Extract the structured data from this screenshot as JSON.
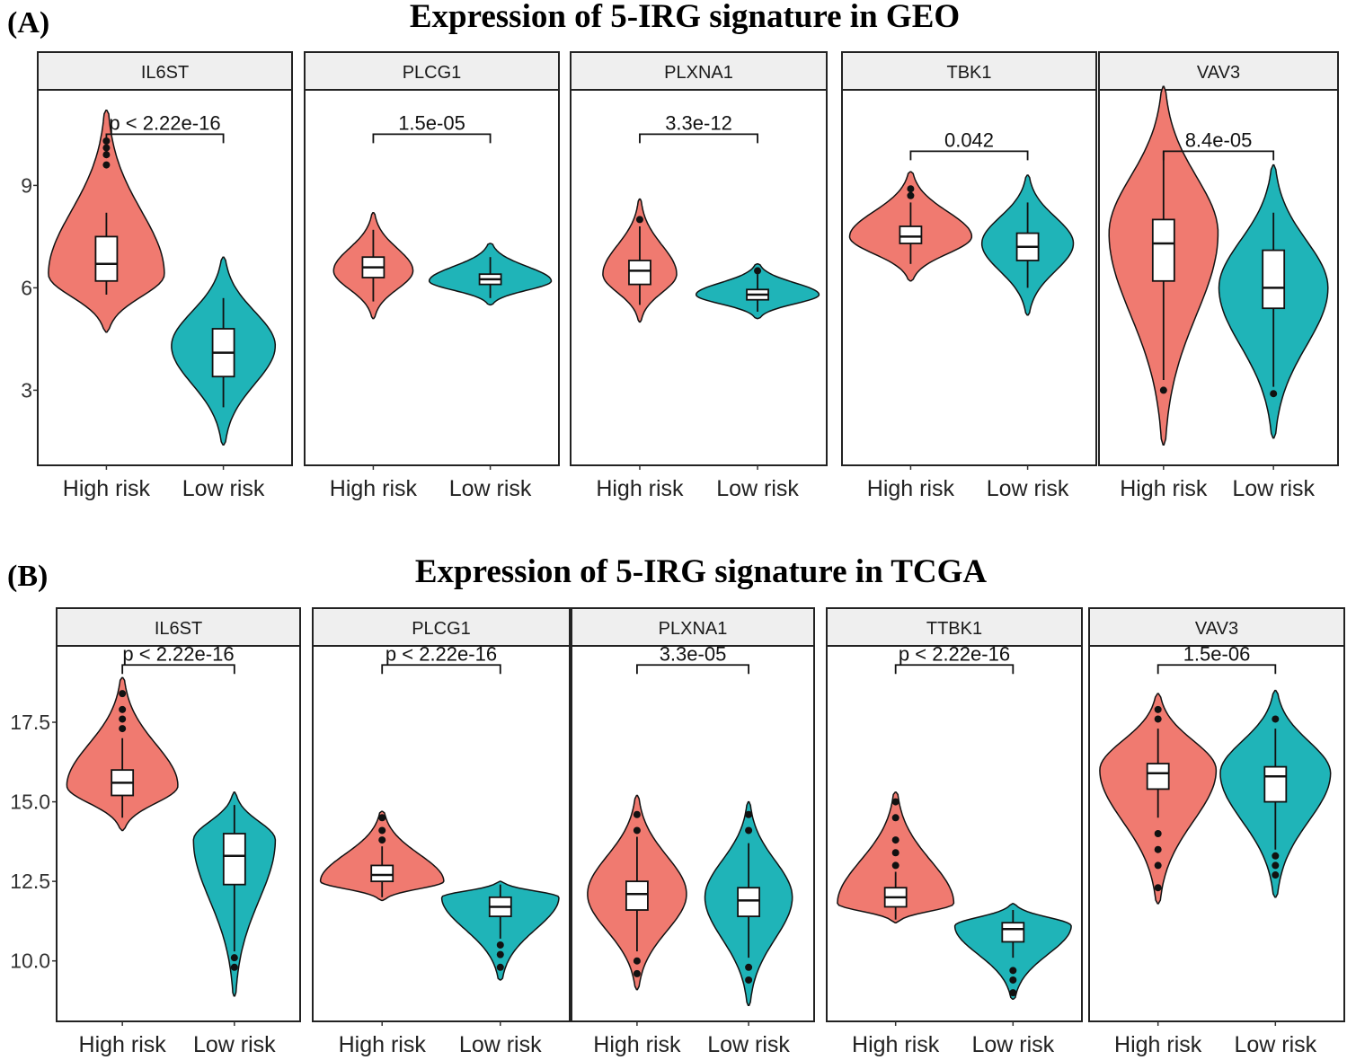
{
  "colors": {
    "high": "#F07A70",
    "low": "#1FB4B8",
    "strip": "#EFEFEF"
  },
  "chart_data": [
    {
      "type": "violin",
      "panel_label": "(A)",
      "title": "Expression of 5-IRG signature in GEO",
      "groups": [
        "High risk",
        "Low risk"
      ],
      "ylim": [
        0.8,
        11.8
      ],
      "yticks": [
        {
          "v": 3,
          "label": "3"
        },
        {
          "v": 6,
          "label": "6"
        },
        {
          "v": 9,
          "label": "9"
        }
      ],
      "facets": [
        {
          "gene": "IL6ST",
          "p": "p < 2.22e-16",
          "bracket": 10.5,
          "high": {
            "median": 6.7,
            "q1": 6.2,
            "q3": 7.5,
            "wlo": 5.8,
            "whi": 8.2,
            "min": 4.7,
            "max": 11.2,
            "mode": 6.4,
            "density": 0.95,
            "outliers": [
              9.6,
              9.9,
              10.1,
              10.3
            ]
          },
          "low": {
            "median": 4.1,
            "q1": 3.4,
            "q3": 4.8,
            "wlo": 2.5,
            "whi": 5.7,
            "min": 1.4,
            "max": 6.9,
            "mode": 4.3,
            "density": 0.85,
            "outliers": []
          }
        },
        {
          "gene": "PLCG1",
          "p": "1.5e-05",
          "bracket": 10.5,
          "high": {
            "median": 6.6,
            "q1": 6.3,
            "q3": 6.9,
            "wlo": 5.6,
            "whi": 7.7,
            "min": 5.1,
            "max": 8.2,
            "mode": 6.5,
            "density": 0.65,
            "outliers": []
          },
          "low": {
            "median": 6.25,
            "q1": 6.1,
            "q3": 6.4,
            "wlo": 5.7,
            "whi": 6.9,
            "min": 5.5,
            "max": 7.3,
            "mode": 6.2,
            "density": 1.0,
            "outliers": []
          }
        },
        {
          "gene": "PLXNA1",
          "p": "3.3e-12",
          "bracket": 10.5,
          "high": {
            "median": 6.5,
            "q1": 6.1,
            "q3": 6.8,
            "wlo": 5.5,
            "whi": 7.8,
            "min": 5.0,
            "max": 8.6,
            "mode": 6.4,
            "density": 0.6,
            "outliers": [
              8.0
            ]
          },
          "low": {
            "median": 5.8,
            "q1": 5.65,
            "q3": 5.95,
            "wlo": 5.3,
            "whi": 6.4,
            "min": 5.1,
            "max": 6.7,
            "mode": 5.8,
            "density": 1.0,
            "outliers": [
              6.5
            ]
          }
        },
        {
          "gene": "TBK1",
          "p": "0.042",
          "bracket": 10.0,
          "high": {
            "median": 7.5,
            "q1": 7.3,
            "q3": 7.8,
            "wlo": 6.7,
            "whi": 8.5,
            "min": 6.2,
            "max": 9.4,
            "mode": 7.5,
            "density": 1.0,
            "outliers": [
              8.7,
              8.9
            ]
          },
          "low": {
            "median": 7.2,
            "q1": 6.8,
            "q3": 7.6,
            "wlo": 6.0,
            "whi": 8.5,
            "min": 5.2,
            "max": 9.3,
            "mode": 7.3,
            "density": 0.75,
            "outliers": []
          }
        },
        {
          "gene": "VAV3",
          "p": "8.4e-05",
          "bracket": 10.0,
          "high": {
            "median": 7.3,
            "q1": 6.2,
            "q3": 8.0,
            "wlo": 3.3,
            "whi": 10.0,
            "min": 1.4,
            "max": 11.9,
            "mode": 7.6,
            "density": 0.95,
            "outliers": [
              3.0
            ]
          },
          "low": {
            "median": 6.0,
            "q1": 5.4,
            "q3": 7.1,
            "wlo": 3.1,
            "whi": 8.2,
            "min": 1.6,
            "max": 9.6,
            "mode": 6.0,
            "density": 0.95,
            "outliers": [
              2.9
            ]
          }
        }
      ]
    },
    {
      "type": "violin",
      "panel_label": "(B)",
      "title": "Expression of 5-IRG signature in TCGA",
      "groups": [
        "High risk",
        "Low risk"
      ],
      "ylim": [
        8.1,
        19.9
      ],
      "yticks": [
        {
          "v": 10,
          "label": "10.0"
        },
        {
          "v": 12.5,
          "label": "12.5"
        },
        {
          "v": 15,
          "label": "15.0"
        },
        {
          "v": 17.5,
          "label": "17.5"
        }
      ],
      "facets": [
        {
          "gene": "IL6ST",
          "p": "p < 2.22e-16",
          "bracket": 19.3,
          "high": {
            "median": 15.6,
            "q1": 15.2,
            "q3": 16.0,
            "wlo": 14.5,
            "whi": 17.0,
            "min": 14.1,
            "max": 18.9,
            "mode": 15.5,
            "density": 0.95,
            "outliers": [
              17.3,
              17.6,
              17.9,
              18.4
            ]
          },
          "low": {
            "median": 13.3,
            "q1": 12.4,
            "q3": 14.0,
            "wlo": 10.3,
            "whi": 14.9,
            "min": 8.9,
            "max": 15.3,
            "mode": 13.8,
            "density": 0.7,
            "outliers": [
              9.8,
              10.1
            ]
          }
        },
        {
          "gene": "PLCG1",
          "p": "p < 2.22e-16",
          "bracket": 19.3,
          "high": {
            "median": 12.7,
            "q1": 12.5,
            "q3": 13.0,
            "wlo": 12.0,
            "whi": 13.6,
            "min": 11.9,
            "max": 14.7,
            "mode": 12.5,
            "density": 1.0,
            "outliers": [
              13.8,
              14.1,
              14.5
            ]
          },
          "low": {
            "median": 11.7,
            "q1": 11.4,
            "q3": 12.0,
            "wlo": 10.7,
            "whi": 12.4,
            "min": 9.4,
            "max": 12.5,
            "mode": 12.0,
            "density": 0.95,
            "outliers": [
              9.8,
              10.2,
              10.5
            ]
          }
        },
        {
          "gene": "PLXNA1",
          "p": "3.3e-05",
          "bracket": 19.3,
          "high": {
            "median": 12.1,
            "q1": 11.6,
            "q3": 12.5,
            "wlo": 10.3,
            "whi": 13.9,
            "min": 9.1,
            "max": 15.2,
            "mode": 12.1,
            "density": 0.85,
            "outliers": [
              9.6,
              10.0,
              14.1,
              14.6
            ]
          },
          "low": {
            "median": 11.9,
            "q1": 11.4,
            "q3": 12.3,
            "wlo": 10.1,
            "whi": 13.7,
            "min": 8.6,
            "max": 15.0,
            "mode": 12.0,
            "density": 0.75,
            "outliers": [
              9.4,
              9.8,
              14.1,
              14.6
            ]
          }
        },
        {
          "gene": "TTBK1",
          "p": "p < 2.22e-16",
          "bracket": 19.3,
          "high": {
            "median": 12.0,
            "q1": 11.7,
            "q3": 12.3,
            "wlo": 11.3,
            "whi": 12.8,
            "min": 11.2,
            "max": 15.3,
            "mode": 11.8,
            "density": 0.95,
            "outliers": [
              13.0,
              13.4,
              13.8,
              14.5,
              15.0
            ]
          },
          "low": {
            "median": 11.0,
            "q1": 10.6,
            "q3": 11.2,
            "wlo": 10.1,
            "whi": 11.6,
            "min": 8.8,
            "max": 11.8,
            "mode": 11.1,
            "density": 0.95,
            "outliers": [
              9.0,
              9.4,
              9.7
            ]
          }
        },
        {
          "gene": "VAV3",
          "p": "1.5e-06",
          "bracket": 19.3,
          "high": {
            "median": 15.9,
            "q1": 15.4,
            "q3": 16.2,
            "wlo": 14.5,
            "whi": 17.3,
            "min": 11.8,
            "max": 18.4,
            "mode": 16.0,
            "density": 0.95,
            "outliers": [
              12.3,
              13.0,
              13.5,
              14.0,
              17.6,
              17.9
            ]
          },
          "low": {
            "median": 15.8,
            "q1": 15.0,
            "q3": 16.1,
            "wlo": 13.5,
            "whi": 17.3,
            "min": 12.0,
            "max": 18.5,
            "mode": 15.9,
            "density": 0.9,
            "outliers": [
              12.7,
              13.0,
              13.3,
              17.6
            ]
          }
        }
      ]
    }
  ]
}
